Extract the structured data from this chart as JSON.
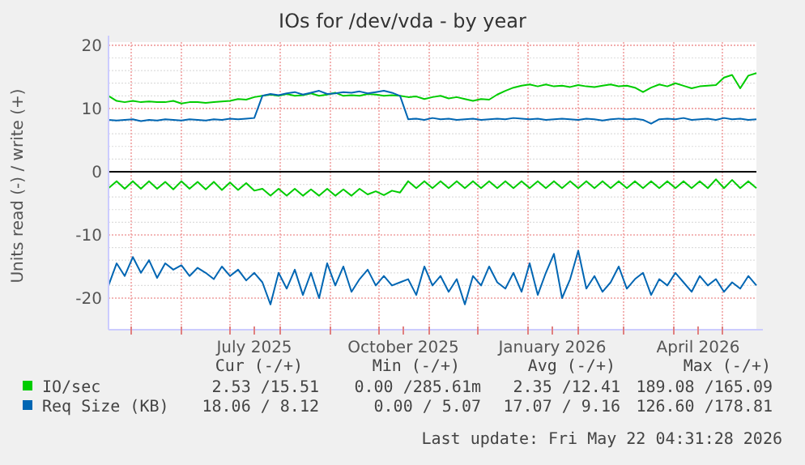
{
  "chart_data": {
    "type": "line",
    "title": "IOs for /dev/vda - by year",
    "ylabel": "Units read (-) / write (+)",
    "x": [
      "2025-04-17",
      "2025-04-22",
      "2025-04-27",
      "2025-05-02",
      "2025-05-07",
      "2025-05-12",
      "2025-05-17",
      "2025-05-22",
      "2025-05-27",
      "2025-06-01",
      "2025-06-06",
      "2025-06-11",
      "2025-06-16",
      "2025-06-21",
      "2025-06-26",
      "2025-07-01",
      "2025-07-06",
      "2025-07-11",
      "2025-07-16",
      "2025-07-21",
      "2025-07-26",
      "2025-07-31",
      "2025-08-05",
      "2025-08-10",
      "2025-08-15",
      "2025-08-20",
      "2025-08-25",
      "2025-08-30",
      "2025-09-04",
      "2025-09-09",
      "2025-09-14",
      "2025-09-19",
      "2025-09-24",
      "2025-09-29",
      "2025-10-04",
      "2025-10-09",
      "2025-10-14",
      "2025-10-19",
      "2025-10-24",
      "2025-10-29",
      "2025-11-03",
      "2025-11-08",
      "2025-11-13",
      "2025-11-18",
      "2025-11-23",
      "2025-11-28",
      "2025-12-03",
      "2025-12-08",
      "2025-12-13",
      "2025-12-18",
      "2025-12-23",
      "2025-12-28",
      "2026-01-02",
      "2026-01-07",
      "2026-01-12",
      "2026-01-17",
      "2026-01-22",
      "2026-01-27",
      "2026-02-01",
      "2026-02-06",
      "2026-02-11",
      "2026-02-16",
      "2026-02-21",
      "2026-02-26",
      "2026-03-03",
      "2026-03-08",
      "2026-03-13",
      "2026-03-18",
      "2026-03-23",
      "2026-03-28",
      "2026-04-02",
      "2026-04-07",
      "2026-04-12",
      "2026-04-17",
      "2026-04-22",
      "2026-04-27",
      "2026-05-02",
      "2026-05-07",
      "2026-05-12",
      "2026-05-17",
      "2026-05-22"
    ],
    "series": [
      {
        "name": "IO/sec",
        "color": "#00cc00",
        "values": [
          12,
          11.2,
          11,
          11.2,
          11,
          11.1,
          11,
          11,
          11.2,
          10.8,
          11,
          11,
          10.9,
          11,
          11.1,
          11.2,
          11.5,
          11.4,
          11.8,
          12,
          12.2,
          12,
          12.3,
          12,
          12.1,
          12.4,
          12,
          12.2,
          12.5,
          12,
          12.1,
          12,
          12.3,
          12.2,
          12,
          12.1,
          12,
          11.8,
          11.9,
          11.5,
          11.8,
          12,
          11.6,
          11.8,
          11.5,
          11.2,
          11.5,
          11.4,
          12.2,
          12.8,
          13.3,
          13.6,
          13.8,
          13.5,
          13.8,
          13.5,
          13.6,
          13.4,
          13.7,
          13.5,
          13.4,
          13.6,
          13.8,
          13.5,
          13.6,
          13.3,
          12.6,
          13.3,
          13.8,
          13.5,
          14,
          13.6,
          13.2,
          13.5,
          13.6,
          13.7,
          14.9,
          15.3,
          13.2,
          15.2,
          15.6
        ]
      },
      {
        "color": "#00cc00",
        "values": [
          -2.6,
          -1.5,
          -2.7,
          -1.5,
          -2.7,
          -1.5,
          -2.7,
          -1.6,
          -2.8,
          -1.5,
          -2.7,
          -1.6,
          -2.8,
          -1.6,
          -2.9,
          -1.7,
          -2.9,
          -1.8,
          -3,
          -2.7,
          -3.8,
          -2.7,
          -3.8,
          -2.7,
          -3.8,
          -2.8,
          -3.8,
          -2.7,
          -3.8,
          -2.8,
          -3.8,
          -2.7,
          -3.6,
          -3.1,
          -3.7,
          -3,
          -3.3,
          -1.5,
          -2.6,
          -1.5,
          -2.6,
          -1.5,
          -2.6,
          -1.5,
          -2.6,
          -1.5,
          -2.6,
          -1.5,
          -2.6,
          -1.5,
          -2.6,
          -1.5,
          -2.6,
          -1.5,
          -2.6,
          -1.5,
          -2.6,
          -1.5,
          -2.6,
          -1.5,
          -2.6,
          -1.5,
          -2.6,
          -1.5,
          -2.6,
          -1.5,
          -2.6,
          -1.5,
          -2.6,
          -1.5,
          -2.6,
          -1.5,
          -2.6,
          -1.5,
          -2.6,
          -1.2,
          -2.6,
          -1.3,
          -2.6,
          -1.5,
          -2.6
        ]
      },
      {
        "name": "Req Size (KB)",
        "color": "#0066b3",
        "values": [
          8.2,
          8.1,
          8.2,
          8.3,
          8,
          8.2,
          8.1,
          8.3,
          8.2,
          8.1,
          8.3,
          8.2,
          8.1,
          8.3,
          8.2,
          8.4,
          8.3,
          8.4,
          8.5,
          12,
          12.3,
          12.1,
          12.4,
          12.6,
          12.2,
          12.5,
          12.8,
          12.3,
          12.4,
          12.6,
          12.5,
          12.7,
          12.4,
          12.6,
          12.8,
          12.5,
          12,
          8.3,
          8.4,
          8.2,
          8.5,
          8.3,
          8.4,
          8.2,
          8.3,
          8.4,
          8.2,
          8.3,
          8.4,
          8.3,
          8.5,
          8.4,
          8.3,
          8.4,
          8.2,
          8.3,
          8.4,
          8.3,
          8.2,
          8.4,
          8.3,
          8.1,
          8.3,
          8.4,
          8.3,
          8.4,
          8.2,
          7.6,
          8.3,
          8.4,
          8.3,
          8.5,
          8.2,
          8.3,
          8.4,
          8.2,
          8.5,
          8.3,
          8.4,
          8.2,
          8.3
        ]
      },
      {
        "color": "#0066b3",
        "values": [
          -18,
          -14.5,
          -16.5,
          -13.5,
          -16,
          -14,
          -16.8,
          -14.5,
          -15.5,
          -14.8,
          -16.5,
          -15.2,
          -16,
          -17,
          -15,
          -16.5,
          -15.5,
          -17.2,
          -16,
          -17.5,
          -21,
          -16,
          -18.5,
          -15.5,
          -19.5,
          -16,
          -20,
          -14.5,
          -18,
          -15,
          -19,
          -17,
          -15.5,
          -18,
          -16.5,
          -18,
          -17.5,
          -17,
          -19.5,
          -15,
          -18,
          -16.5,
          -19,
          -17,
          -21,
          -16.5,
          -18,
          -15,
          -17.5,
          -18.5,
          -16,
          -19,
          -14.5,
          -19.5,
          -16,
          -13,
          -20,
          -17,
          -12.5,
          -18.5,
          -16.5,
          -19,
          -17.5,
          -15,
          -18.5,
          -17,
          -16,
          -19.5,
          -17,
          -18,
          -16,
          -17.5,
          -19,
          -16.5,
          -18,
          -17,
          -19,
          -17.5,
          -18.5,
          -16.5,
          -18
        ]
      }
    ],
    "xlim": [
      "2025-04-17",
      "2026-05-22"
    ],
    "xticks": [
      {
        "value": "2025-05-01",
        "label": null
      },
      {
        "value": "2025-06-01",
        "label": null
      },
      {
        "value": "2025-07-01",
        "label": null
      },
      {
        "value": "2025-07-16",
        "label": "July 2025"
      },
      {
        "value": "2025-08-01",
        "label": null
      },
      {
        "value": "2025-09-01",
        "label": null
      },
      {
        "value": "2025-10-01",
        "label": null
      },
      {
        "value": "2025-10-16",
        "label": "October 2025"
      },
      {
        "value": "2025-11-01",
        "label": null
      },
      {
        "value": "2025-12-01",
        "label": null
      },
      {
        "value": "2026-01-01",
        "label": null
      },
      {
        "value": "2026-01-16",
        "label": "January 2026"
      },
      {
        "value": "2026-02-01",
        "label": null
      },
      {
        "value": "2026-03-01",
        "label": null
      },
      {
        "value": "2026-04-01",
        "label": null
      },
      {
        "value": "2026-04-16",
        "label": "April 2026"
      },
      {
        "value": "2026-05-01",
        "label": null
      }
    ],
    "ylim": [
      -25,
      20.5
    ],
    "yticks": [
      -20,
      -10,
      0,
      10,
      20
    ],
    "grid": true,
    "legend": "bottom",
    "ref_lines": [
      {
        "axis": "y",
        "value": 0,
        "color": "#000000"
      }
    ],
    "annotations": [
      "Cur (-/+)",
      "Min (-/+)",
      "Avg (-/+)",
      "Max (-/+)",
      "2.53 /15.51",
      "0.00 /285.61m",
      "2.35 /12.41",
      "189.08 /165.09",
      "18.06 / 8.12",
      "0.00 / 5.07",
      "17.07 / 9.16",
      "126.60 /178.81",
      "Last update: Fri May 22 04:31:28 2026"
    ]
  }
}
